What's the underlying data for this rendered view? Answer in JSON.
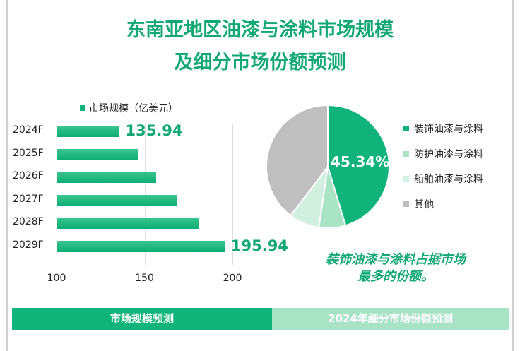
{
  "title_line1": "东南亚地区油漆与涂料市场规模",
  "title_line2": "及细分市场份额预测",
  "chart_data": [
    {
      "type": "bar",
      "orientation": "horizontal",
      "legend": "市场规模（亿美元）",
      "legend_position": "top",
      "categories": [
        "2024F",
        "2025F",
        "2026F",
        "2027F",
        "2028F",
        "2029F"
      ],
      "values": [
        135.94,
        146,
        156.5,
        168.8,
        181,
        195.94
      ],
      "data_labels": {
        "2024F": "135.94",
        "2029F": "195.94"
      },
      "xlim": [
        100,
        200
      ],
      "xticks": [
        "100",
        "150",
        "200"
      ],
      "grid": true,
      "color": "#10b37a"
    },
    {
      "type": "pie",
      "legend_position": "right",
      "labels": [
        "装饰油漆与涂料",
        "防护油漆与涂料",
        "船舶油漆与涂料",
        "其他"
      ],
      "values": [
        45.34,
        7,
        8,
        39.66
      ],
      "data_label": "45.34%",
      "colors": [
        "#10b37a",
        "#a9e4c4",
        "#d2f0e0",
        "#bfbfbf"
      ]
    }
  ],
  "note": [
    "装饰油漆与涂料占据市场",
    "最多的份额。"
  ],
  "footer": {
    "left": "市场规模预测",
    "right": "2024年细分市场份额预测",
    "left_color": "#10b37a",
    "right_color": "#a8e3c5"
  }
}
